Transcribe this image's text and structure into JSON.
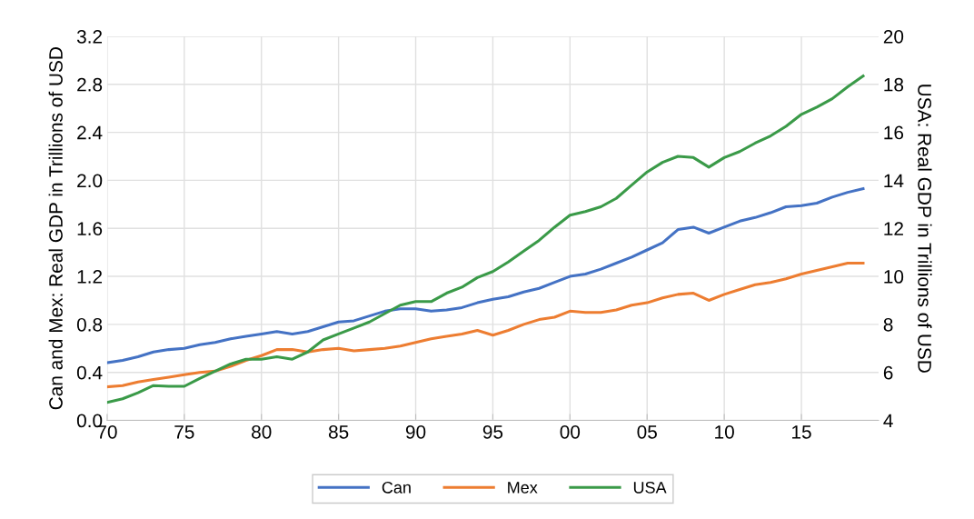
{
  "chart_data": {
    "type": "line",
    "ylabel": "Can and Mex: Real GDP in Trillions of USD",
    "y2label": "USA: Real GDP in Trillions of USD",
    "x": [
      1970,
      1971,
      1972,
      1973,
      1974,
      1975,
      1976,
      1977,
      1978,
      1979,
      1980,
      1981,
      1982,
      1983,
      1984,
      1985,
      1986,
      1987,
      1988,
      1989,
      1990,
      1991,
      1992,
      1993,
      1994,
      1995,
      1996,
      1997,
      1998,
      1999,
      2000,
      2001,
      2002,
      2003,
      2004,
      2005,
      2006,
      2007,
      2008,
      2009,
      2010,
      2011,
      2012,
      2013,
      2014,
      2015,
      2016,
      2017,
      2018,
      2019
    ],
    "series": [
      {
        "name": "Can",
        "color": "#4472c4",
        "values": [
          0.48,
          0.5,
          0.53,
          0.57,
          0.59,
          0.6,
          0.63,
          0.65,
          0.68,
          0.7,
          0.72,
          0.74,
          0.72,
          0.74,
          0.78,
          0.82,
          0.83,
          0.87,
          0.91,
          0.93,
          0.93,
          0.91,
          0.92,
          0.94,
          0.98,
          1.01,
          1.03,
          1.07,
          1.1,
          1.15,
          1.2,
          1.22,
          1.26,
          1.31,
          1.36,
          1.42,
          1.48,
          1.59,
          1.61,
          1.56,
          1.61,
          1.66,
          1.69,
          1.73,
          1.78,
          1.79,
          1.81,
          1.86,
          1.9,
          1.93
        ]
      },
      {
        "name": "Mex",
        "color": "#ed7d31",
        "values": [
          0.28,
          0.29,
          0.32,
          0.34,
          0.36,
          0.38,
          0.4,
          0.41,
          0.45,
          0.5,
          0.54,
          0.59,
          0.59,
          0.57,
          0.59,
          0.6,
          0.58,
          0.59,
          0.6,
          0.62,
          0.65,
          0.68,
          0.7,
          0.72,
          0.75,
          0.71,
          0.75,
          0.8,
          0.84,
          0.86,
          0.91,
          0.9,
          0.9,
          0.92,
          0.96,
          0.98,
          1.02,
          1.05,
          1.06,
          1.0,
          1.05,
          1.09,
          1.13,
          1.15,
          1.18,
          1.22,
          1.25,
          1.28,
          1.31,
          1.31
        ]
      },
      {
        "name": "USA",
        "color": "#3a9a48",
        "axis": "y2",
        "values": [
          4.75,
          4.9,
          5.15,
          5.45,
          5.42,
          5.42,
          5.75,
          6.05,
          6.35,
          6.55,
          6.55,
          6.65,
          6.55,
          6.85,
          7.35,
          7.6,
          7.85,
          8.1,
          8.45,
          8.8,
          8.95,
          8.95,
          9.3,
          9.55,
          9.95,
          10.2,
          10.6,
          11.05,
          11.5,
          12.05,
          12.55,
          12.7,
          12.9,
          13.25,
          13.8,
          14.35,
          14.75,
          15.0,
          14.95,
          14.55,
          14.95,
          15.2,
          15.55,
          15.85,
          16.25,
          16.75,
          17.05,
          17.4,
          17.9,
          18.35
        ]
      }
    ],
    "xlim": [
      1970,
      2020
    ],
    "xticks": [
      {
        "value": 1970,
        "label": "70"
      },
      {
        "value": 1975,
        "label": "75"
      },
      {
        "value": 1980,
        "label": "80"
      },
      {
        "value": 1985,
        "label": "85"
      },
      {
        "value": 1990,
        "label": "90"
      },
      {
        "value": 1995,
        "label": "95"
      },
      {
        "value": 2000,
        "label": "00"
      },
      {
        "value": 2005,
        "label": "05"
      },
      {
        "value": 2010,
        "label": "10"
      },
      {
        "value": 2015,
        "label": "15"
      }
    ],
    "ylim": [
      0,
      3.2
    ],
    "yticks": [
      {
        "value": 0,
        "label": "0.0"
      },
      {
        "value": 0.4,
        "label": "0.4"
      },
      {
        "value": 0.8,
        "label": "0.8"
      },
      {
        "value": 1.2,
        "label": "1.2"
      },
      {
        "value": 1.6,
        "label": "1.6"
      },
      {
        "value": 2.0,
        "label": "2.0"
      },
      {
        "value": 2.4,
        "label": "2.4"
      },
      {
        "value": 2.8,
        "label": "2.8"
      },
      {
        "value": 3.2,
        "label": "3.2"
      }
    ],
    "y2lim": [
      4,
      20
    ],
    "y2ticks": [
      4,
      6,
      8,
      10,
      12,
      14,
      16,
      18,
      20
    ],
    "grid": true,
    "legend": "bottom",
    "marker": "none",
    "line_style": "solid"
  }
}
